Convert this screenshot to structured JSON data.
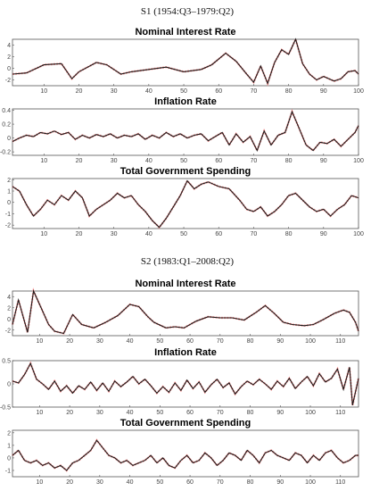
{
  "sections": [
    {
      "title": "S1 (1954:Q3–1979:Q2)"
    },
    {
      "title": "S2 (1983:Q1–2008:Q2)"
    }
  ],
  "colors": {
    "series": "#1a1a1a",
    "overlay": "#ff8c8c",
    "frame": "#555555"
  },
  "chart_data": [
    {
      "type": "line",
      "section": 0,
      "title": "Nominal Interest Rate",
      "xlim": [
        1,
        100
      ],
      "ylim": [
        -3,
        5
      ],
      "xticks": [
        10,
        20,
        30,
        40,
        50,
        60,
        70,
        80,
        90,
        100
      ],
      "yticks": [
        -2,
        0,
        2,
        4
      ],
      "points": [
        [
          1,
          -1.0
        ],
        [
          5,
          -0.8
        ],
        [
          10,
          0.6
        ],
        [
          15,
          0.8
        ],
        [
          18,
          -1.8
        ],
        [
          20,
          -0.6
        ],
        [
          25,
          1.0
        ],
        [
          28,
          0.6
        ],
        [
          32,
          -1.0
        ],
        [
          35,
          -0.6
        ],
        [
          40,
          -0.2
        ],
        [
          45,
          0.2
        ],
        [
          50,
          -0.6
        ],
        [
          55,
          -0.2
        ],
        [
          58,
          0.6
        ],
        [
          62,
          2.6
        ],
        [
          65,
          1.2
        ],
        [
          68,
          -1.0
        ],
        [
          70,
          -2.4
        ],
        [
          72,
          0.4
        ],
        [
          74,
          -2.6
        ],
        [
          76,
          1.0
        ],
        [
          78,
          3.2
        ],
        [
          80,
          2.4
        ],
        [
          82,
          5.0
        ],
        [
          84,
          0.8
        ],
        [
          86,
          -1.0
        ],
        [
          88,
          -2.0
        ],
        [
          90,
          -1.4
        ],
        [
          93,
          -2.2
        ],
        [
          95,
          -1.8
        ],
        [
          97,
          -0.6
        ],
        [
          99,
          -0.4
        ],
        [
          100,
          -1.0
        ]
      ]
    },
    {
      "type": "line",
      "section": 0,
      "title": "Inflation Rate",
      "xlim": [
        1,
        100
      ],
      "ylim": [
        -0.25,
        0.42
      ],
      "xticks": [
        10,
        20,
        30,
        40,
        50,
        60,
        70,
        80,
        90,
        100
      ],
      "yticks": [
        -0.2,
        0,
        0.2,
        0.4
      ],
      "points": [
        [
          1,
          -0.05
        ],
        [
          3,
          0.0
        ],
        [
          5,
          0.04
        ],
        [
          7,
          0.02
        ],
        [
          9,
          0.08
        ],
        [
          11,
          0.06
        ],
        [
          13,
          0.1
        ],
        [
          15,
          0.05
        ],
        [
          17,
          0.08
        ],
        [
          19,
          -0.02
        ],
        [
          21,
          0.04
        ],
        [
          23,
          0.0
        ],
        [
          25,
          0.05
        ],
        [
          27,
          0.02
        ],
        [
          29,
          0.06
        ],
        [
          31,
          0.0
        ],
        [
          33,
          0.04
        ],
        [
          35,
          0.02
        ],
        [
          37,
          0.06
        ],
        [
          39,
          -0.02
        ],
        [
          41,
          0.04
        ],
        [
          43,
          0.0
        ],
        [
          45,
          0.08
        ],
        [
          47,
          0.02
        ],
        [
          49,
          0.06
        ],
        [
          51,
          0.0
        ],
        [
          53,
          0.04
        ],
        [
          55,
          0.06
        ],
        [
          57,
          -0.04
        ],
        [
          59,
          0.02
        ],
        [
          61,
          0.08
        ],
        [
          63,
          -0.1
        ],
        [
          65,
          0.06
        ],
        [
          67,
          -0.06
        ],
        [
          69,
          0.02
        ],
        [
          71,
          -0.18
        ],
        [
          73,
          0.1
        ],
        [
          75,
          -0.1
        ],
        [
          77,
          0.04
        ],
        [
          79,
          0.08
        ],
        [
          81,
          0.38
        ],
        [
          83,
          0.14
        ],
        [
          85,
          -0.1
        ],
        [
          87,
          -0.18
        ],
        [
          89,
          -0.06
        ],
        [
          91,
          -0.08
        ],
        [
          93,
          -0.02
        ],
        [
          95,
          -0.12
        ],
        [
          97,
          -0.02
        ],
        [
          99,
          0.08
        ],
        [
          100,
          0.18
        ]
      ]
    },
    {
      "type": "line",
      "section": 0,
      "title": "Total Government Spending",
      "xlim": [
        1,
        100
      ],
      "ylim": [
        -2.3,
        2.1
      ],
      "xticks": [
        10,
        20,
        30,
        40,
        50,
        60,
        70,
        80,
        90,
        100
      ],
      "yticks": [
        -2,
        -1,
        0,
        1,
        2
      ],
      "points": [
        [
          1,
          1.4
        ],
        [
          3,
          1.0
        ],
        [
          5,
          -0.2
        ],
        [
          7,
          -1.2
        ],
        [
          9,
          -0.6
        ],
        [
          11,
          0.2
        ],
        [
          13,
          -0.2
        ],
        [
          15,
          0.6
        ],
        [
          17,
          0.2
        ],
        [
          19,
          1.0
        ],
        [
          21,
          0.4
        ],
        [
          23,
          -1.2
        ],
        [
          25,
          -0.6
        ],
        [
          27,
          -0.2
        ],
        [
          29,
          0.2
        ],
        [
          31,
          0.8
        ],
        [
          33,
          0.4
        ],
        [
          35,
          0.6
        ],
        [
          37,
          -0.2
        ],
        [
          39,
          -0.8
        ],
        [
          41,
          -1.6
        ],
        [
          43,
          -2.2
        ],
        [
          45,
          -1.4
        ],
        [
          47,
          -0.4
        ],
        [
          49,
          0.6
        ],
        [
          51,
          1.9
        ],
        [
          53,
          1.2
        ],
        [
          55,
          1.6
        ],
        [
          57,
          1.8
        ],
        [
          60,
          1.4
        ],
        [
          63,
          1.2
        ],
        [
          66,
          0.2
        ],
        [
          68,
          -0.6
        ],
        [
          70,
          -0.8
        ],
        [
          72,
          -0.4
        ],
        [
          74,
          -1.2
        ],
        [
          76,
          -0.8
        ],
        [
          78,
          -0.2
        ],
        [
          80,
          0.6
        ],
        [
          82,
          0.8
        ],
        [
          84,
          0.2
        ],
        [
          86,
          -0.4
        ],
        [
          88,
          -0.8
        ],
        [
          90,
          -0.6
        ],
        [
          92,
          -1.2
        ],
        [
          94,
          -0.6
        ],
        [
          96,
          -0.2
        ],
        [
          98,
          0.6
        ],
        [
          100,
          0.4
        ]
      ]
    },
    {
      "type": "line",
      "section": 1,
      "title": "Nominal Interest Rate",
      "xlim": [
        1,
        116
      ],
      "ylim": [
        -3,
        5
      ],
      "xticks": [
        10,
        20,
        30,
        40,
        50,
        60,
        70,
        80,
        90,
        100,
        110
      ],
      "yticks": [
        -2,
        0,
        2,
        4
      ],
      "points": [
        [
          1,
          -1.0
        ],
        [
          3,
          3.4
        ],
        [
          6,
          -2.4
        ],
        [
          8,
          5.0
        ],
        [
          10,
          2.6
        ],
        [
          13,
          -1.0
        ],
        [
          15,
          -2.2
        ],
        [
          18,
          -2.6
        ],
        [
          21,
          0.8
        ],
        [
          24,
          -1.0
        ],
        [
          28,
          -1.6
        ],
        [
          32,
          -0.6
        ],
        [
          36,
          0.6
        ],
        [
          40,
          2.6
        ],
        [
          43,
          2.2
        ],
        [
          46,
          0.4
        ],
        [
          48,
          -0.6
        ],
        [
          52,
          -1.6
        ],
        [
          55,
          -1.4
        ],
        [
          58,
          -1.6
        ],
        [
          62,
          -0.4
        ],
        [
          66,
          0.4
        ],
        [
          70,
          0.2
        ],
        [
          74,
          0.2
        ],
        [
          78,
          -0.2
        ],
        [
          82,
          1.2
        ],
        [
          85,
          2.4
        ],
        [
          88,
          1.0
        ],
        [
          91,
          -0.6
        ],
        [
          94,
          -1.0
        ],
        [
          98,
          -1.2
        ],
        [
          101,
          -1.0
        ],
        [
          104,
          -0.2
        ],
        [
          108,
          1.0
        ],
        [
          111,
          1.6
        ],
        [
          113,
          1.2
        ],
        [
          115,
          -0.6
        ],
        [
          116,
          -2.2
        ]
      ]
    },
    {
      "type": "line",
      "section": 1,
      "title": "Inflation Rate",
      "xlim": [
        1,
        116
      ],
      "ylim": [
        -0.5,
        0.5
      ],
      "xticks": [
        10,
        20,
        30,
        40,
        50,
        60,
        70,
        80,
        90,
        100,
        110
      ],
      "yticks": [
        -0.5,
        0,
        0.5
      ],
      "points": [
        [
          1,
          0.06
        ],
        [
          3,
          0.02
        ],
        [
          5,
          0.2
        ],
        [
          7,
          0.44
        ],
        [
          9,
          0.1
        ],
        [
          11,
          0.0
        ],
        [
          13,
          -0.12
        ],
        [
          15,
          0.06
        ],
        [
          17,
          -0.16
        ],
        [
          19,
          -0.04
        ],
        [
          21,
          -0.2
        ],
        [
          23,
          -0.04
        ],
        [
          25,
          -0.12
        ],
        [
          27,
          0.04
        ],
        [
          29,
          -0.14
        ],
        [
          31,
          0.02
        ],
        [
          33,
          -0.16
        ],
        [
          35,
          0.06
        ],
        [
          37,
          -0.06
        ],
        [
          39,
          0.04
        ],
        [
          41,
          0.16
        ],
        [
          43,
          0.0
        ],
        [
          45,
          0.1
        ],
        [
          47,
          -0.04
        ],
        [
          49,
          -0.2
        ],
        [
          51,
          -0.06
        ],
        [
          53,
          -0.18
        ],
        [
          55,
          0.02
        ],
        [
          57,
          -0.14
        ],
        [
          59,
          0.08
        ],
        [
          61,
          -0.1
        ],
        [
          63,
          0.04
        ],
        [
          65,
          -0.18
        ],
        [
          67,
          -0.02
        ],
        [
          69,
          0.1
        ],
        [
          71,
          -0.08
        ],
        [
          73,
          0.02
        ],
        [
          75,
          -0.22
        ],
        [
          77,
          -0.06
        ],
        [
          79,
          0.06
        ],
        [
          81,
          -0.02
        ],
        [
          83,
          0.1
        ],
        [
          85,
          0.0
        ],
        [
          87,
          -0.12
        ],
        [
          89,
          0.06
        ],
        [
          91,
          -0.06
        ],
        [
          93,
          0.12
        ],
        [
          95,
          -0.1
        ],
        [
          97,
          0.04
        ],
        [
          99,
          0.16
        ],
        [
          101,
          -0.04
        ],
        [
          103,
          0.22
        ],
        [
          105,
          0.04
        ],
        [
          107,
          0.12
        ],
        [
          109,
          0.32
        ],
        [
          111,
          -0.12
        ],
        [
          113,
          0.36
        ],
        [
          114,
          -0.46
        ],
        [
          116,
          0.12
        ]
      ]
    },
    {
      "type": "line",
      "section": 1,
      "title": "Total Government Spending",
      "xlim": [
        1,
        116
      ],
      "ylim": [
        -1.5,
        2.2
      ],
      "xticks": [
        10,
        20,
        30,
        40,
        50,
        60,
        70,
        80,
        90,
        100,
        110
      ],
      "yticks": [
        -1,
        0,
        1,
        2
      ],
      "points": [
        [
          1,
          0.2
        ],
        [
          3,
          0.6
        ],
        [
          5,
          -0.2
        ],
        [
          7,
          -0.4
        ],
        [
          9,
          -0.2
        ],
        [
          11,
          -0.6
        ],
        [
          13,
          -0.4
        ],
        [
          15,
          -0.8
        ],
        [
          17,
          -0.6
        ],
        [
          19,
          -1.0
        ],
        [
          21,
          -0.4
        ],
        [
          23,
          -0.2
        ],
        [
          25,
          0.2
        ],
        [
          27,
          0.6
        ],
        [
          29,
          1.4
        ],
        [
          31,
          0.8
        ],
        [
          33,
          0.2
        ],
        [
          35,
          0.0
        ],
        [
          37,
          -0.4
        ],
        [
          39,
          -0.2
        ],
        [
          41,
          -0.6
        ],
        [
          43,
          -0.4
        ],
        [
          45,
          -0.2
        ],
        [
          47,
          0.2
        ],
        [
          49,
          -0.4
        ],
        [
          51,
          0.0
        ],
        [
          53,
          -0.6
        ],
        [
          55,
          -0.8
        ],
        [
          57,
          -0.2
        ],
        [
          59,
          0.2
        ],
        [
          61,
          -0.4
        ],
        [
          63,
          -0.2
        ],
        [
          65,
          0.4
        ],
        [
          67,
          0.0
        ],
        [
          69,
          -0.6
        ],
        [
          71,
          -0.2
        ],
        [
          73,
          0.4
        ],
        [
          75,
          0.2
        ],
        [
          77,
          -0.2
        ],
        [
          79,
          0.6
        ],
        [
          81,
          0.2
        ],
        [
          83,
          -0.4
        ],
        [
          85,
          0.4
        ],
        [
          87,
          0.6
        ],
        [
          89,
          0.2
        ],
        [
          91,
          0.0
        ],
        [
          93,
          -0.2
        ],
        [
          95,
          0.4
        ],
        [
          97,
          0.2
        ],
        [
          99,
          -0.4
        ],
        [
          101,
          0.2
        ],
        [
          103,
          -0.2
        ],
        [
          105,
          0.4
        ],
        [
          107,
          0.6
        ],
        [
          109,
          0.0
        ],
        [
          111,
          -0.4
        ],
        [
          113,
          -0.2
        ],
        [
          115,
          0.2
        ],
        [
          116,
          0.2
        ]
      ]
    }
  ]
}
